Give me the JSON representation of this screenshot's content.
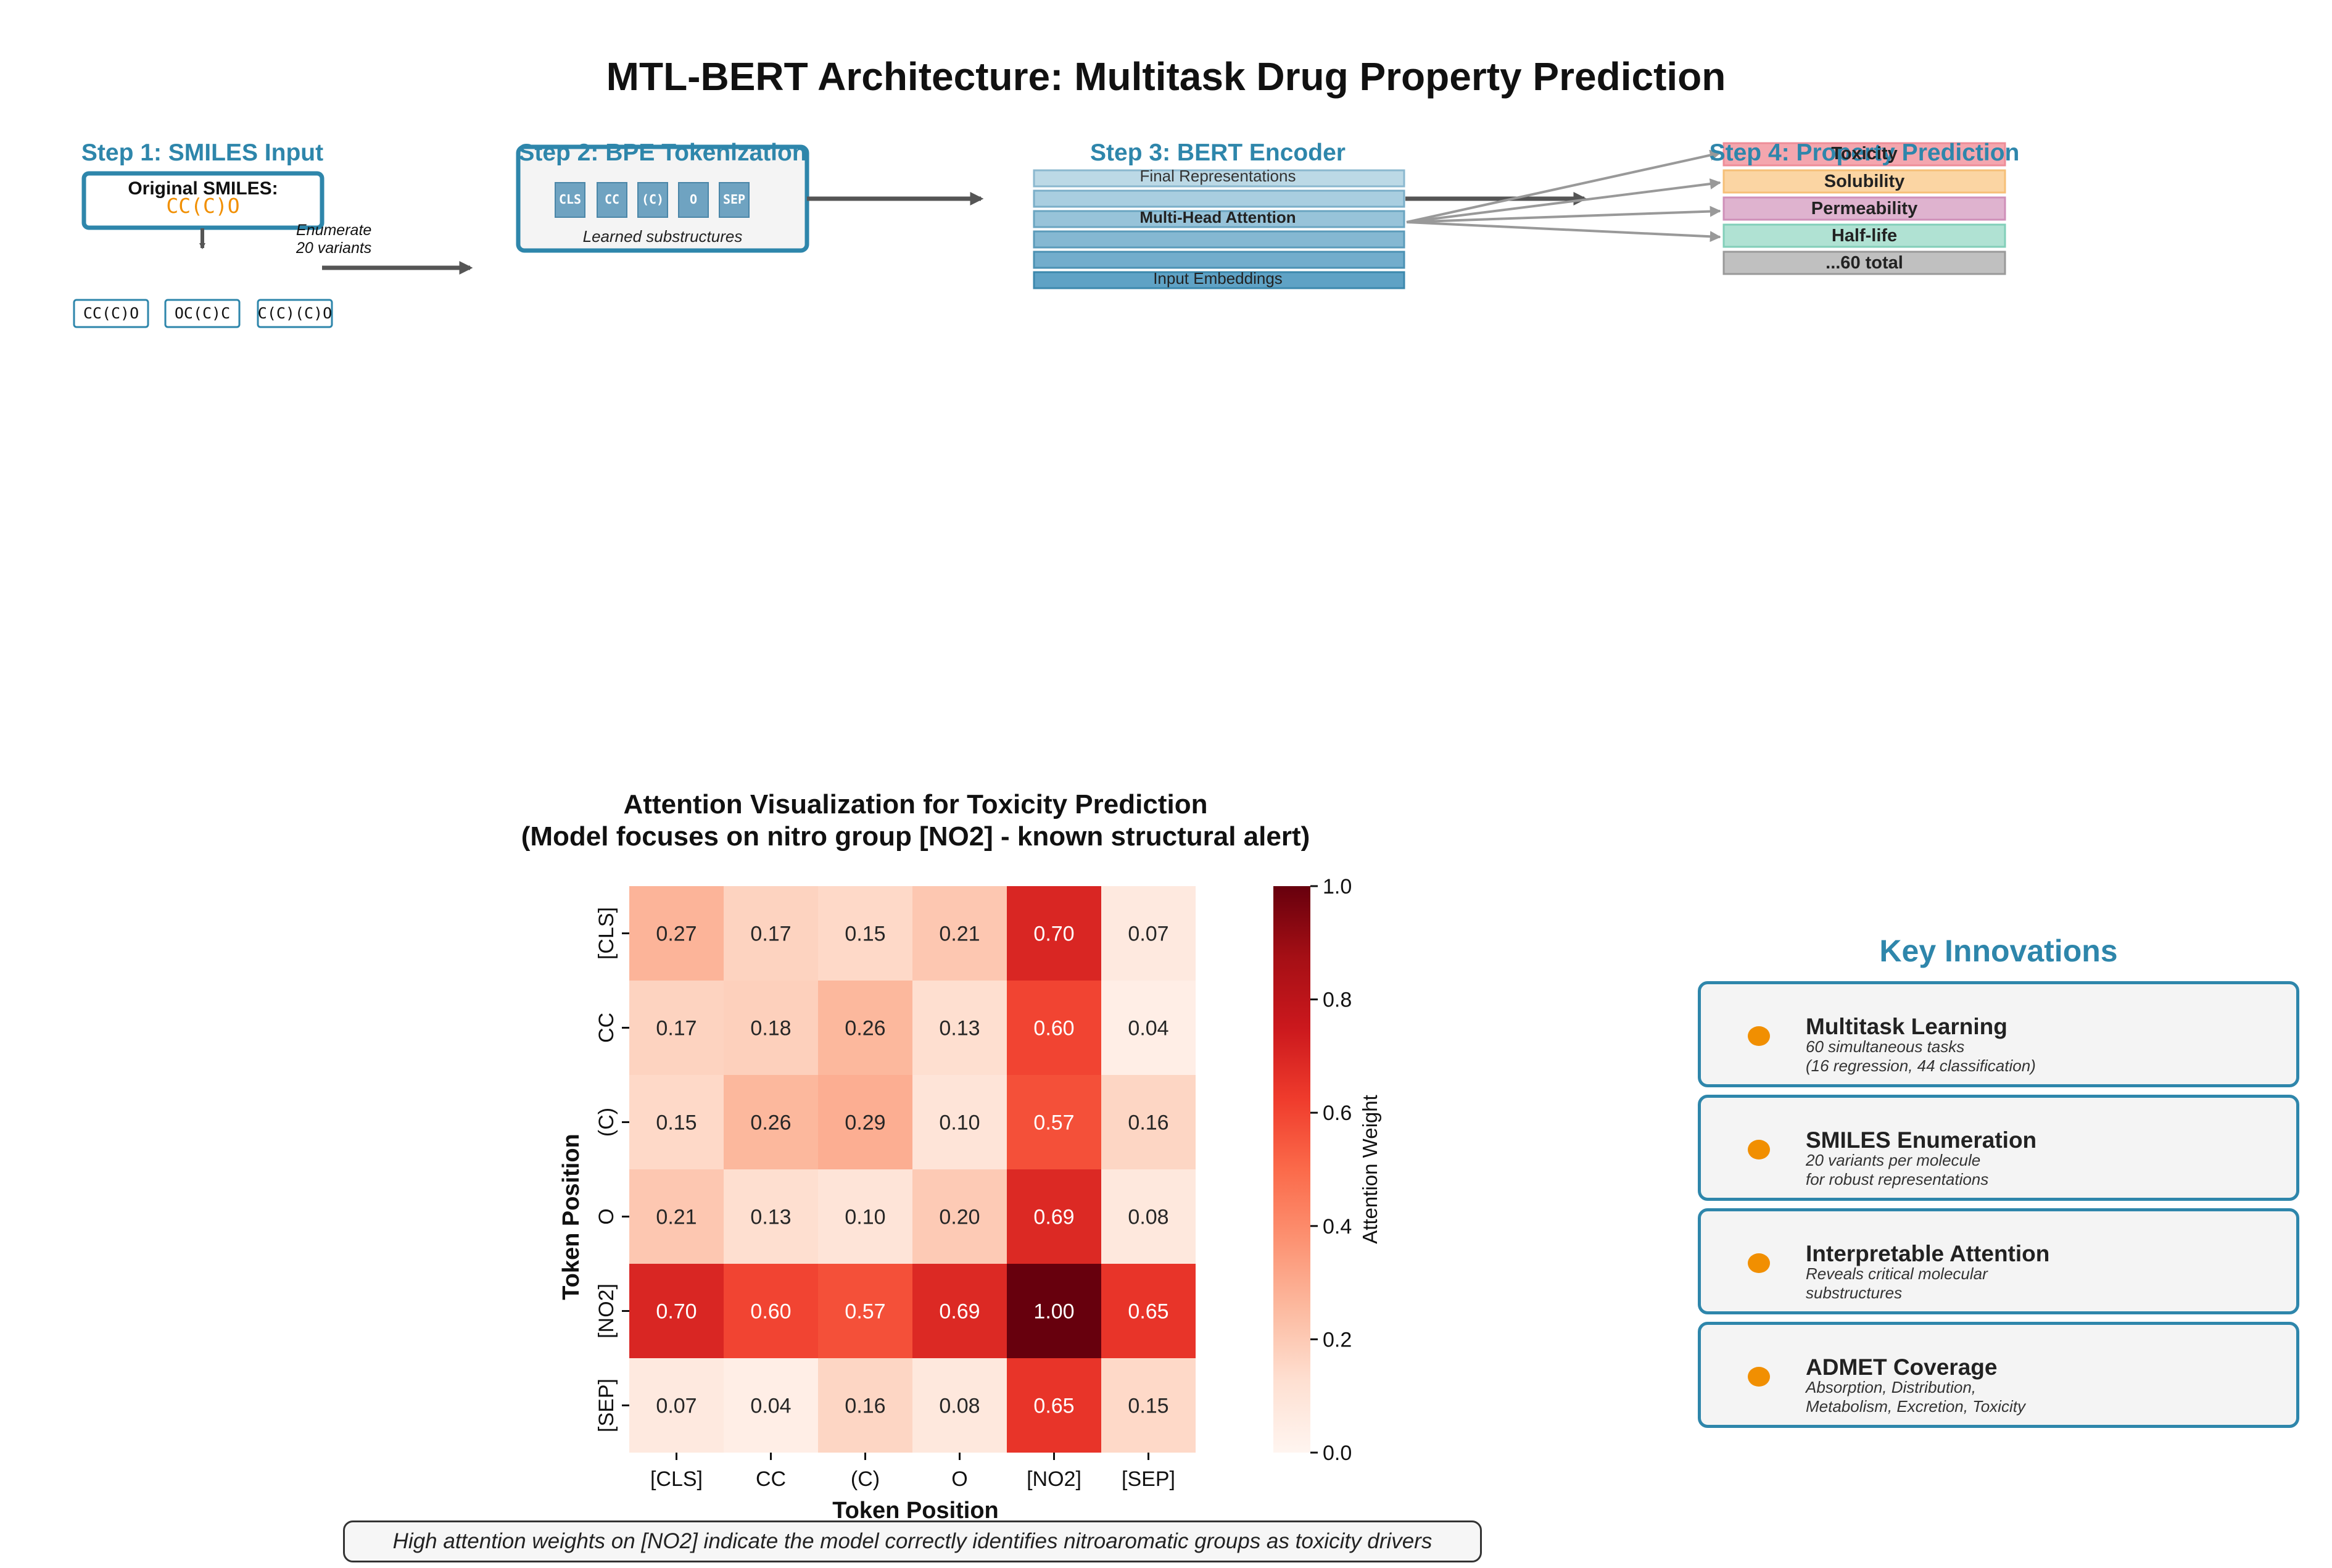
{
  "title": "MTL-BERT Architecture: Multitask Drug Property Prediction",
  "steps": {
    "step1": {
      "label": "Step 1: SMILES Input",
      "original_label": "Original SMILES:",
      "original_smiles": "CC(C)O",
      "enumerate_note_line1": "Enumerate",
      "enumerate_note_line2": "20 variants",
      "variants": [
        "CC(C)O",
        "OC(C)C",
        "C(C)(C)O"
      ]
    },
    "step2": {
      "label": "Step 2: BPE Tokenization",
      "tokens": [
        "CLS",
        "CC",
        "(C)",
        "O",
        "SEP"
      ],
      "caption": "Learned substructures"
    },
    "step3": {
      "label": "Step 3: BERT Encoder",
      "top_layer": "Final Representations",
      "middle_layer": "Multi-Head Attention",
      "bottom_layer": "Input Embeddings"
    },
    "step4": {
      "label": "Step 4: Property Prediction",
      "outputs": [
        "Toxicity",
        "Solubility",
        "Permeability",
        "Half-life",
        "...60 total"
      ]
    }
  },
  "colors": {
    "accent_blue": "#2e86ab",
    "orange": "#f18f01",
    "toxicity": "#f4a6ae",
    "solubility": "#fbd5a3",
    "permeability": "#dfb3cf",
    "half_life": "#b0e2d3",
    "total": "#c0c0c0"
  },
  "chart_data": {
    "type": "heatmap",
    "title_line1": "Attention Visualization for Toxicity Prediction",
    "title_line2": "(Model focuses on nitro group [NO2] - known structural alert)",
    "xlabel": "Token Position",
    "ylabel": "Token Position",
    "x_categories": [
      "[CLS]",
      "CC",
      "(C)",
      "O",
      "[NO2]",
      "[SEP]"
    ],
    "y_categories": [
      "[CLS]",
      "CC",
      "(C)",
      "O",
      "[NO2]",
      "[SEP]"
    ],
    "values": [
      [
        0.27,
        0.17,
        0.15,
        0.21,
        0.7,
        0.07
      ],
      [
        0.17,
        0.18,
        0.26,
        0.13,
        0.6,
        0.04
      ],
      [
        0.15,
        0.26,
        0.29,
        0.1,
        0.57,
        0.16
      ],
      [
        0.21,
        0.13,
        0.1,
        0.2,
        0.69,
        0.08
      ],
      [
        0.7,
        0.6,
        0.57,
        0.69,
        1.0,
        0.65
      ],
      [
        0.07,
        0.04,
        0.16,
        0.08,
        0.65,
        0.15
      ]
    ],
    "colorbar_label": "Attention Weight",
    "colorbar_ticks": [
      "0.0",
      "0.2",
      "0.4",
      "0.6",
      "0.8",
      "1.0"
    ],
    "vmin": 0.0,
    "vmax": 1.0,
    "colormap": "Reds",
    "annotation_note": "High attention weights on [NO2] indicate the model correctly identifies nitroaromatic groups as toxicity drivers"
  },
  "innovations": {
    "heading": "Key Innovations",
    "items": [
      {
        "title": "Multitask Learning",
        "line1": "60 simultaneous tasks",
        "line2": "(16 regression, 44 classification)"
      },
      {
        "title": "SMILES Enumeration",
        "line1": "20 variants per molecule",
        "line2": "for robust representations"
      },
      {
        "title": "Interpretable Attention",
        "line1": "Reveals critical molecular",
        "line2": "substructures"
      },
      {
        "title": "ADMET Coverage",
        "line1": "Absorption, Distribution,",
        "line2": "Metabolism, Excretion, Toxicity"
      }
    ]
  }
}
